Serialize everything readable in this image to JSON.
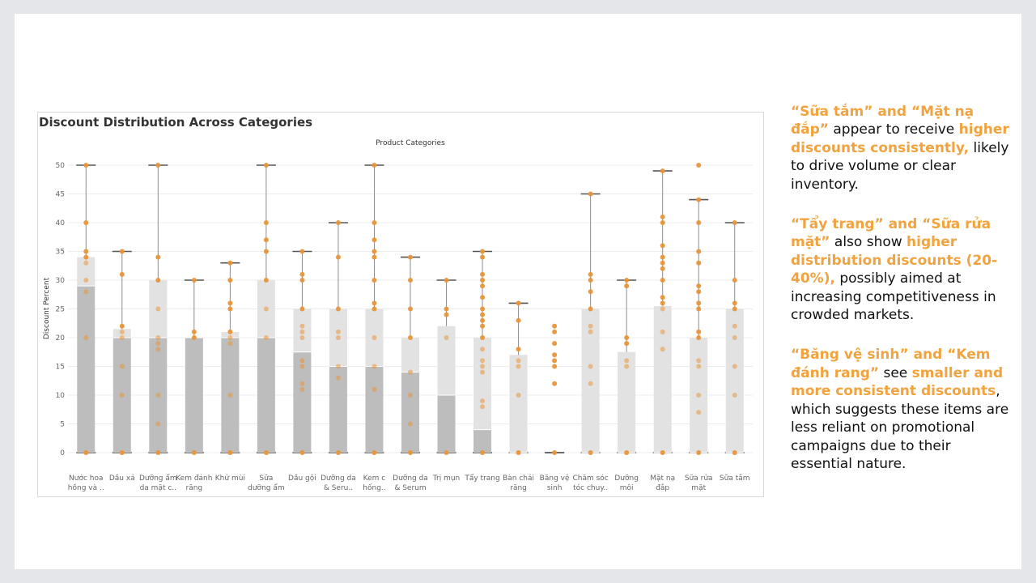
{
  "chart_data": {
    "type": "boxplot",
    "title": "Discount Distribution Across Categories",
    "xlabel": "Product Categories",
    "ylabel": "Discount Percent",
    "ylim": [
      0,
      50
    ],
    "yticks": [
      0,
      5,
      10,
      15,
      20,
      25,
      30,
      35,
      40,
      45,
      50
    ],
    "colors": {
      "point": "#e8953a",
      "box_lower": "#bdbdbd",
      "box_upper": "#e2e2e2",
      "whisker": "#8c8c8c",
      "grid": "#ececec"
    },
    "categories": [
      {
        "label1": "Nước hoa",
        "label2": "hồng và ..",
        "min": 0,
        "q1": 0,
        "median": 29,
        "q3": 34,
        "max": 50,
        "points": [
          0,
          20,
          28,
          30,
          33,
          34,
          35,
          40,
          50
        ]
      },
      {
        "label1": "Dầu xả",
        "label2": "",
        "min": 0,
        "q1": 0,
        "median": 20,
        "q3": 21.5,
        "max": 35,
        "points": [
          0,
          10,
          15,
          20,
          21,
          22,
          31,
          35
        ]
      },
      {
        "label1": "Dưỡng ẩm",
        "label2": "da mặt c..",
        "min": 0,
        "q1": 0,
        "median": 20,
        "q3": 30,
        "max": 50,
        "points": [
          0,
          5,
          10,
          18,
          19,
          20,
          25,
          30,
          34,
          50
        ]
      },
      {
        "label1": "Kem đánh",
        "label2": "răng",
        "min": 0,
        "q1": 0,
        "median": 20,
        "q3": 20,
        "max": 30,
        "points": [
          0,
          20,
          21,
          30
        ]
      },
      {
        "label1": "Khử mùi",
        "label2": "",
        "min": 0,
        "q1": 0,
        "median": 20,
        "q3": 21,
        "max": 33,
        "points": [
          0,
          10,
          19,
          20,
          21,
          25,
          26,
          30,
          33
        ]
      },
      {
        "label1": "Sữa",
        "label2": "dưỡng ẩm",
        "min": 0,
        "q1": 0,
        "median": 20,
        "q3": 30,
        "max": 50,
        "points": [
          0,
          20,
          25,
          30,
          35,
          37,
          40,
          50
        ]
      },
      {
        "label1": "Dầu gội",
        "label2": "",
        "min": 0,
        "q1": 0,
        "median": 17.5,
        "q3": 25,
        "max": 35,
        "points": [
          0,
          11,
          12,
          15,
          16,
          20,
          21,
          22,
          25,
          30,
          31,
          35
        ]
      },
      {
        "label1": "Dưỡng da",
        "label2": "& Seru..",
        "min": 0,
        "q1": 0,
        "median": 15,
        "q3": 25,
        "max": 40,
        "points": [
          0,
          13,
          15,
          20,
          21,
          25,
          34,
          40
        ]
      },
      {
        "label1": "Kem c",
        "label2": "hống..",
        "min": 0,
        "q1": 0,
        "median": 15,
        "q3": 25,
        "max": 50,
        "points": [
          0,
          11,
          15,
          20,
          25,
          26,
          30,
          34,
          35,
          37,
          40,
          50
        ]
      },
      {
        "label1": "Dưỡng da",
        "label2": "& Serum",
        "min": 0,
        "q1": 0,
        "median": 14,
        "q3": 20,
        "max": 34,
        "points": [
          0,
          5,
          10,
          14,
          20,
          25,
          30,
          34
        ]
      },
      {
        "label1": "Trị mụn",
        "label2": "",
        "min": 0,
        "q1": 0,
        "median": 10,
        "q3": 22,
        "max": 30,
        "points": [
          0,
          20,
          24,
          25,
          30
        ]
      },
      {
        "label1": "Tẩy trang",
        "label2": "",
        "min": 0,
        "q1": 0,
        "median": 4,
        "q3": 20,
        "max": 35,
        "points": [
          0,
          8,
          9,
          14,
          15,
          16,
          18,
          20,
          22,
          23,
          24,
          25,
          27,
          29,
          30,
          31,
          34,
          35
        ]
      },
      {
        "label1": "Bàn chải",
        "label2": "răng",
        "min": 0,
        "q1": 0,
        "median": 0,
        "q3": 17,
        "max": 26,
        "points": [
          0,
          10,
          15,
          16,
          18,
          23,
          26
        ]
      },
      {
        "label1": "Băng vệ",
        "label2": "sinh",
        "min": 0,
        "q1": 0,
        "median": 0,
        "q3": 0,
        "max": 0,
        "points": [
          0,
          12,
          15,
          16,
          17,
          19,
          21,
          22
        ]
      },
      {
        "label1": "Chăm sóc",
        "label2": "tóc chuy..",
        "min": 0,
        "q1": 0,
        "median": 0,
        "q3": 25,
        "max": 45,
        "points": [
          0,
          12,
          15,
          21,
          22,
          25,
          28,
          30,
          31,
          45
        ]
      },
      {
        "label1": "Dưỡng",
        "label2": "môi",
        "min": 0,
        "q1": 0,
        "median": 0,
        "q3": 17.5,
        "max": 30,
        "points": [
          0,
          15,
          16,
          19,
          20,
          29,
          30
        ]
      },
      {
        "label1": "Mặt nạ",
        "label2": "đắp",
        "min": 0,
        "q1": 0,
        "median": 0,
        "q3": 25.5,
        "max": 49,
        "points": [
          0,
          18,
          21,
          25,
          26,
          27,
          30,
          32,
          33,
          34,
          36,
          40,
          41,
          49
        ]
      },
      {
        "label1": "Sữa rửa",
        "label2": "mặt",
        "min": 0,
        "q1": 0,
        "median": 0,
        "q3": 20,
        "max": 44,
        "points": [
          0,
          7,
          10,
          15,
          16,
          20,
          21,
          25,
          26,
          28,
          29,
          33,
          35,
          40,
          44,
          50
        ]
      },
      {
        "label1": "Sữa tắm",
        "label2": "",
        "min": 0,
        "q1": 0,
        "median": 0,
        "q3": 25,
        "max": 40,
        "points": [
          0,
          10,
          15,
          20,
          22,
          25,
          26,
          30,
          40
        ]
      }
    ]
  },
  "notes": [
    {
      "parts": [
        {
          "text": "“Sữa tắm” and “Mặt nạ đắp”",
          "hl": true
        },
        {
          "text": " appear to receive ",
          "hl": false
        },
        {
          "text": "higher discounts consistently,",
          "hl": true
        },
        {
          "text": " likely to drive volume or clear inventory.",
          "hl": false
        }
      ]
    },
    {
      "parts": [
        {
          "text": "“Tẩy trang” and “Sữa rửa mặt”",
          "hl": true
        },
        {
          "text": " also show ",
          "hl": false
        },
        {
          "text": "higher distribution discounts (20-40%),",
          "hl": true
        },
        {
          "text": " possibly aimed at increasing competitiveness in crowded markets.",
          "hl": false
        }
      ]
    },
    {
      "parts": [
        {
          "text": "“Băng vệ sinh” and “Kem đánh rang”",
          "hl": true
        },
        {
          "text": " see ",
          "hl": false
        },
        {
          "text": "smaller and more consistent discounts",
          "hl": true
        },
        {
          "text": ", which suggests these items are less reliant on promotional campaigns due to their essential nature.",
          "hl": false
        }
      ]
    }
  ]
}
